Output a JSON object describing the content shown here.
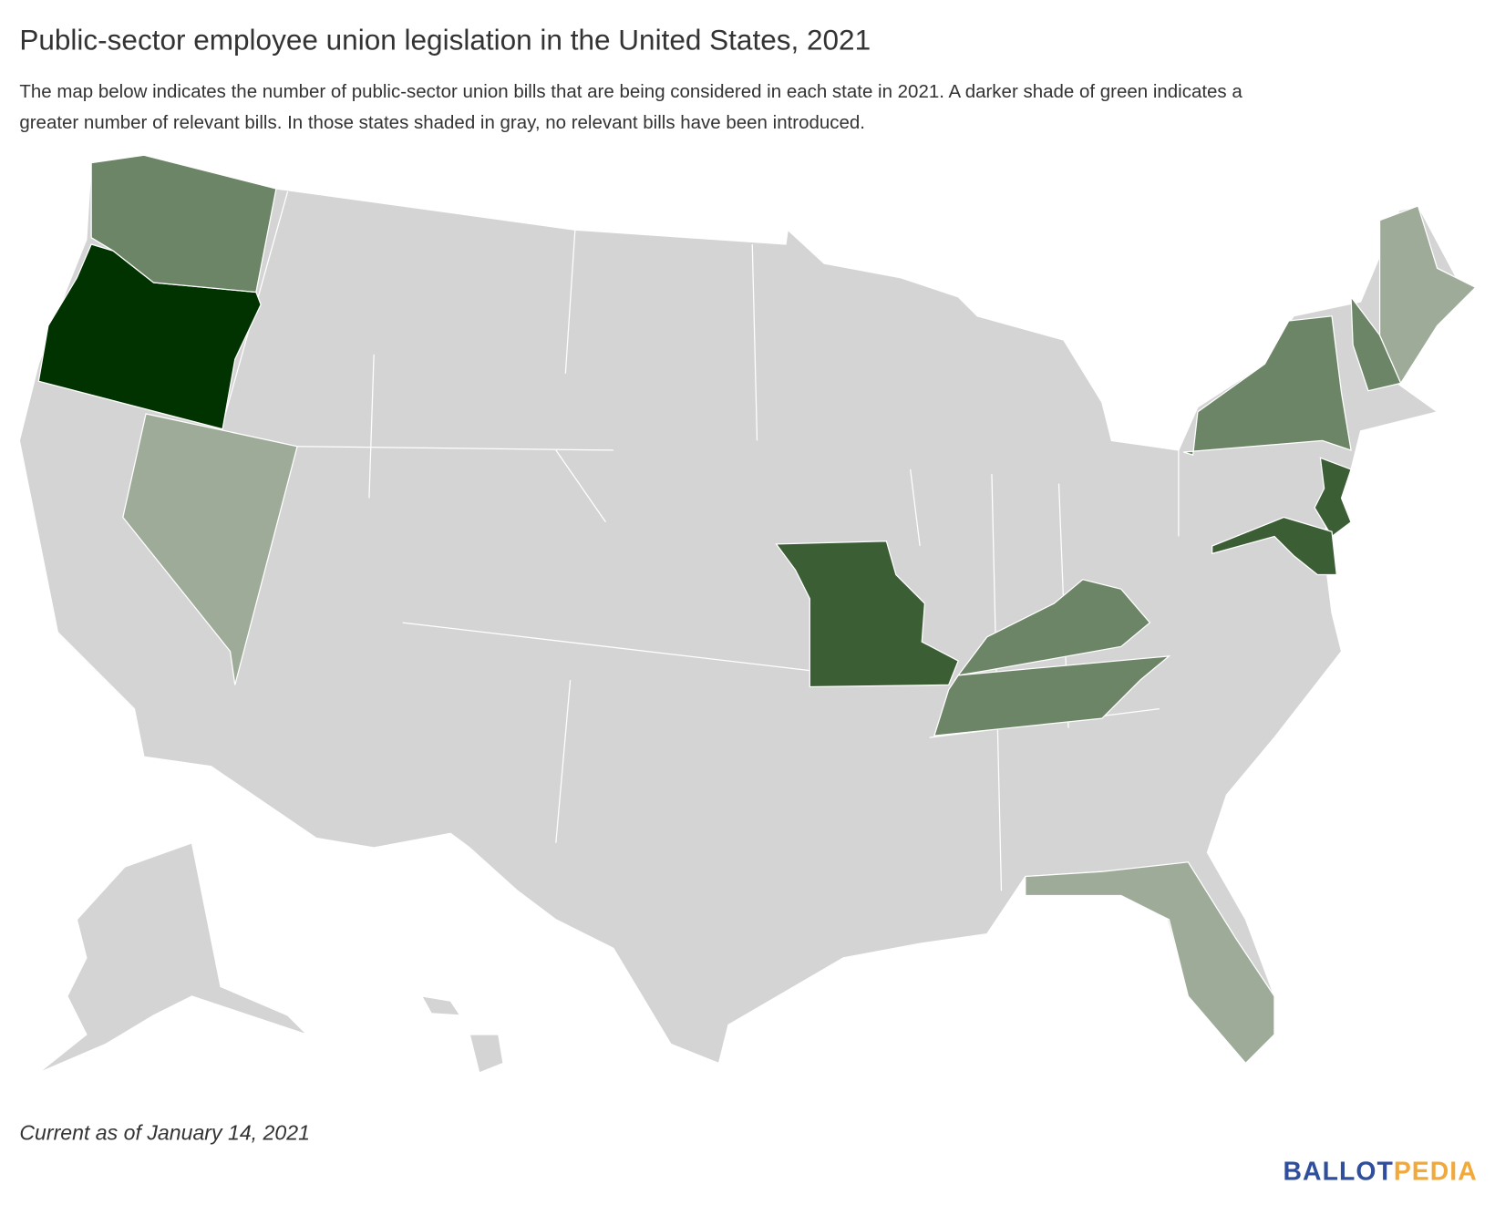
{
  "header": {
    "title": "Public-sector employee union legislation in the United States, 2021",
    "description": [
      "The map below indicates the number of public-sector union bills that are being considered in each state in 2021. A darker shade of green indicates a",
      "greater number of relevant bills. In those states shaded in gray, no relevant bills have been introduced."
    ]
  },
  "map": {
    "base_color": "#d4d4d4",
    "border_color": "#ffffff",
    "shade_colors": [
      "#003300",
      "#3b5e35",
      "#6b8566",
      "#9eab98"
    ]
  },
  "footer": {
    "note": "Current as of January 14, 2021",
    "logo": [
      "BALLOT",
      "PEDIA"
    ],
    "logo_colors": [
      "#2f4e9c",
      "#f2a93b"
    ]
  }
}
